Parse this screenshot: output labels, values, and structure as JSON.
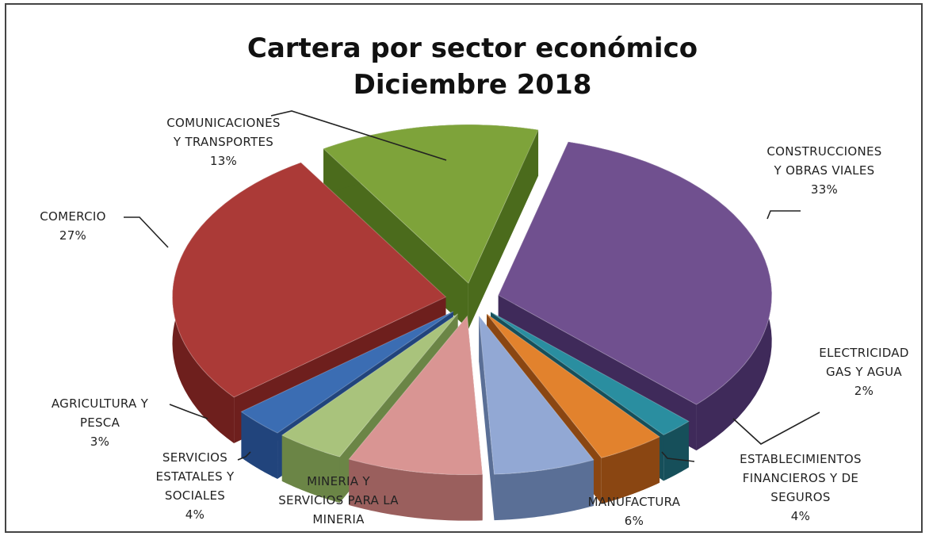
{
  "chart_data": {
    "type": "pie",
    "title": [
      "Cartera por sector económico",
      "Diciembre 2018"
    ],
    "style": "3d-exploded",
    "categories": [
      "COMUNICACIONES Y TRANSPORTES",
      "CONSTRUCCIONES Y OBRAS VIALES",
      "ELECTRICIDAD GAS Y AGUA",
      "ESTABLECIMIENTOS FINANCIEROS Y DE SEGUROS",
      "MANUFACTURA",
      "MINERIA Y SERVICIOS PARA LA MINERIA",
      "SERVICIOS ESTATALES Y SOCIALES",
      "AGRICULTURA Y PESCA",
      "COMERCIO"
    ],
    "values": [
      13,
      33,
      2,
      4,
      6,
      8,
      4,
      3,
      27
    ],
    "value_labels_shown": [
      true,
      true,
      true,
      true,
      true,
      false,
      true,
      true,
      true
    ],
    "label_lines": [
      [
        "COMUNICACIONES",
        "Y TRANSPORTES",
        "13%"
      ],
      [
        "CONSTRUCCIONES",
        "Y OBRAS VIALES",
        "33%"
      ],
      [
        "ELECTRICIDAD",
        "GAS Y AGUA",
        "2%"
      ],
      [
        "ESTABLECIMIENTOS",
        "FINANCIEROS Y DE",
        "SEGUROS",
        "4%"
      ],
      [
        "MANUFACTURA",
        "6%"
      ],
      [
        "MINERIA Y",
        "SERVICIOS PARA LA",
        "MINERIA"
      ],
      [
        "SERVICIOS",
        "ESTATALES  Y",
        "SOCIALES",
        "4%"
      ],
      [
        "AGRICULTURA  Y",
        "PESCA",
        "3%"
      ],
      [
        "COMERCIO",
        "27%"
      ]
    ],
    "colors": [
      "#7ea33a",
      "#70508f",
      "#2a8ea0",
      "#e2822d",
      "#92a8d4",
      "#d99593",
      "#a9c37c",
      "#3b6db3",
      "#ab3a37"
    ],
    "side_colors": [
      "#4b6b1c",
      "#3f2a5a",
      "#164f5a",
      "#8a4612",
      "#5a6f96",
      "#9a5f5d",
      "#6b8546",
      "#21447c",
      "#6e1f1d"
    ],
    "legend": "none"
  }
}
